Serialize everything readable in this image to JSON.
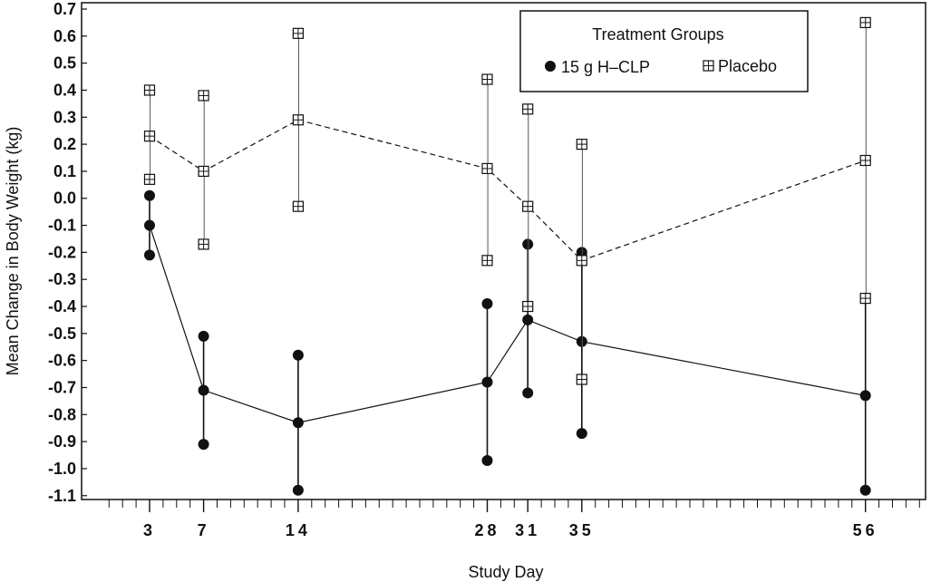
{
  "chart_data": {
    "type": "line",
    "xlabel": "Study Day",
    "ylabel": "Mean Change in Body Weight (kg)",
    "xlim": [
      -1,
      61
    ],
    "ylim": [
      -1.13,
      0.73
    ],
    "yticks": [
      "0.7",
      "0.6",
      "0.5",
      "0.4",
      "0.3",
      "0.2",
      "0.1",
      "0.0",
      "-0.1",
      "-0.2",
      "-0.3",
      "-0.4",
      "-0.5",
      "-0.6",
      "-0.7",
      "-0.8",
      "-0.9",
      "-1.0",
      "-1.1"
    ],
    "ytick_values": [
      0.7,
      0.6,
      0.5,
      0.4,
      0.3,
      0.2,
      0.1,
      0.0,
      -0.1,
      -0.2,
      -0.3,
      -0.4,
      -0.5,
      -0.6,
      -0.7,
      -0.8,
      -0.9,
      -1.0,
      -1.1
    ],
    "xticks": [
      "3",
      "7",
      "14",
      "28",
      "31",
      "35",
      "56"
    ],
    "xtick_values": [
      3,
      7,
      14,
      28,
      31,
      35,
      56
    ],
    "x": [
      3,
      7,
      14,
      28,
      31,
      35,
      56
    ],
    "legend": {
      "title": "Treatment Groups",
      "placement": "top-right"
    },
    "series": [
      {
        "name": "15 g H–CLP",
        "marker": "filled-circle",
        "line": "solid",
        "color": "#111111",
        "values": [
          -0.1,
          -0.71,
          -0.83,
          -0.68,
          -0.45,
          -0.53,
          -0.73
        ],
        "upper": [
          0.01,
          -0.51,
          -0.58,
          -0.39,
          -0.17,
          -0.2,
          -0.37
        ],
        "lower": [
          -0.21,
          -0.91,
          -1.08,
          -0.97,
          -0.72,
          -0.87,
          -1.08
        ]
      },
      {
        "name": "Placebo",
        "marker": "open-square",
        "line": "dashed",
        "color": "#111111",
        "values": [
          0.23,
          0.1,
          0.29,
          0.11,
          -0.03,
          -0.23,
          0.14
        ],
        "upper": [
          0.4,
          0.38,
          0.61,
          0.44,
          0.33,
          0.2,
          0.65
        ],
        "lower": [
          0.07,
          -0.17,
          -0.03,
          -0.23,
          -0.4,
          -0.67,
          -0.37
        ]
      }
    ]
  }
}
